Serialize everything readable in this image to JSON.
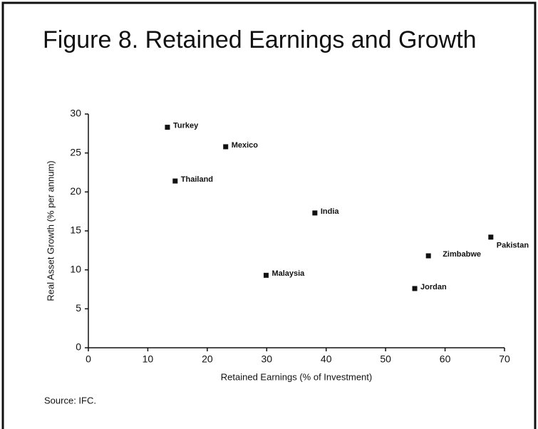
{
  "chart_data": {
    "type": "scatter",
    "title": "Figure 8. Retained Earnings and Growth",
    "x_label": "Retained Earnings (% of Investment)",
    "y_label": "Real Asset Growth (% per annum)",
    "source": "Source: IFC.",
    "point_labels": [
      "Turkey",
      "Mexico",
      "Thailand",
      "India",
      "Pakistan",
      "Zimbabwe",
      "Malaysia",
      "Jordan"
    ],
    "x": [
      13.3,
      23.1,
      14.6,
      38.1,
      67.7,
      57.2,
      29.9,
      54.9
    ],
    "values": [
      28.3,
      25.8,
      21.4,
      17.3,
      14.2,
      11.8,
      9.3,
      7.6
    ],
    "color": "#111111",
    "xlim": [
      0,
      70
    ],
    "xticks": [
      0,
      10,
      20,
      30,
      40,
      50,
      60,
      70
    ],
    "ylim": [
      0,
      30
    ],
    "yticks": [
      0,
      5,
      10,
      15,
      20,
      25,
      30
    ],
    "grid": false
  }
}
